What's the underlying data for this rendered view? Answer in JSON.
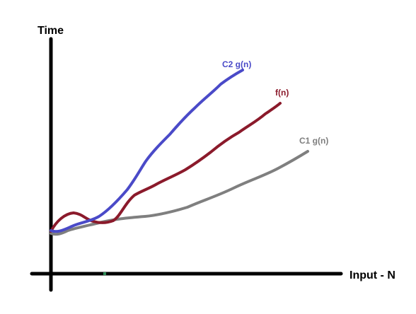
{
  "axes": {
    "y_label": "Time",
    "x_label": "Input  - N",
    "color": "#000000"
  },
  "curves": [
    {
      "key": "c2",
      "label": "C2 g(n)",
      "color": "#4a4ac8"
    },
    {
      "key": "f",
      "label": "f(n)",
      "color": "#8b1a2b"
    },
    {
      "key": "c1",
      "label": "C1 g(n)",
      "color": "#7f7f7f"
    }
  ],
  "tick_color": "#2e8b57"
}
